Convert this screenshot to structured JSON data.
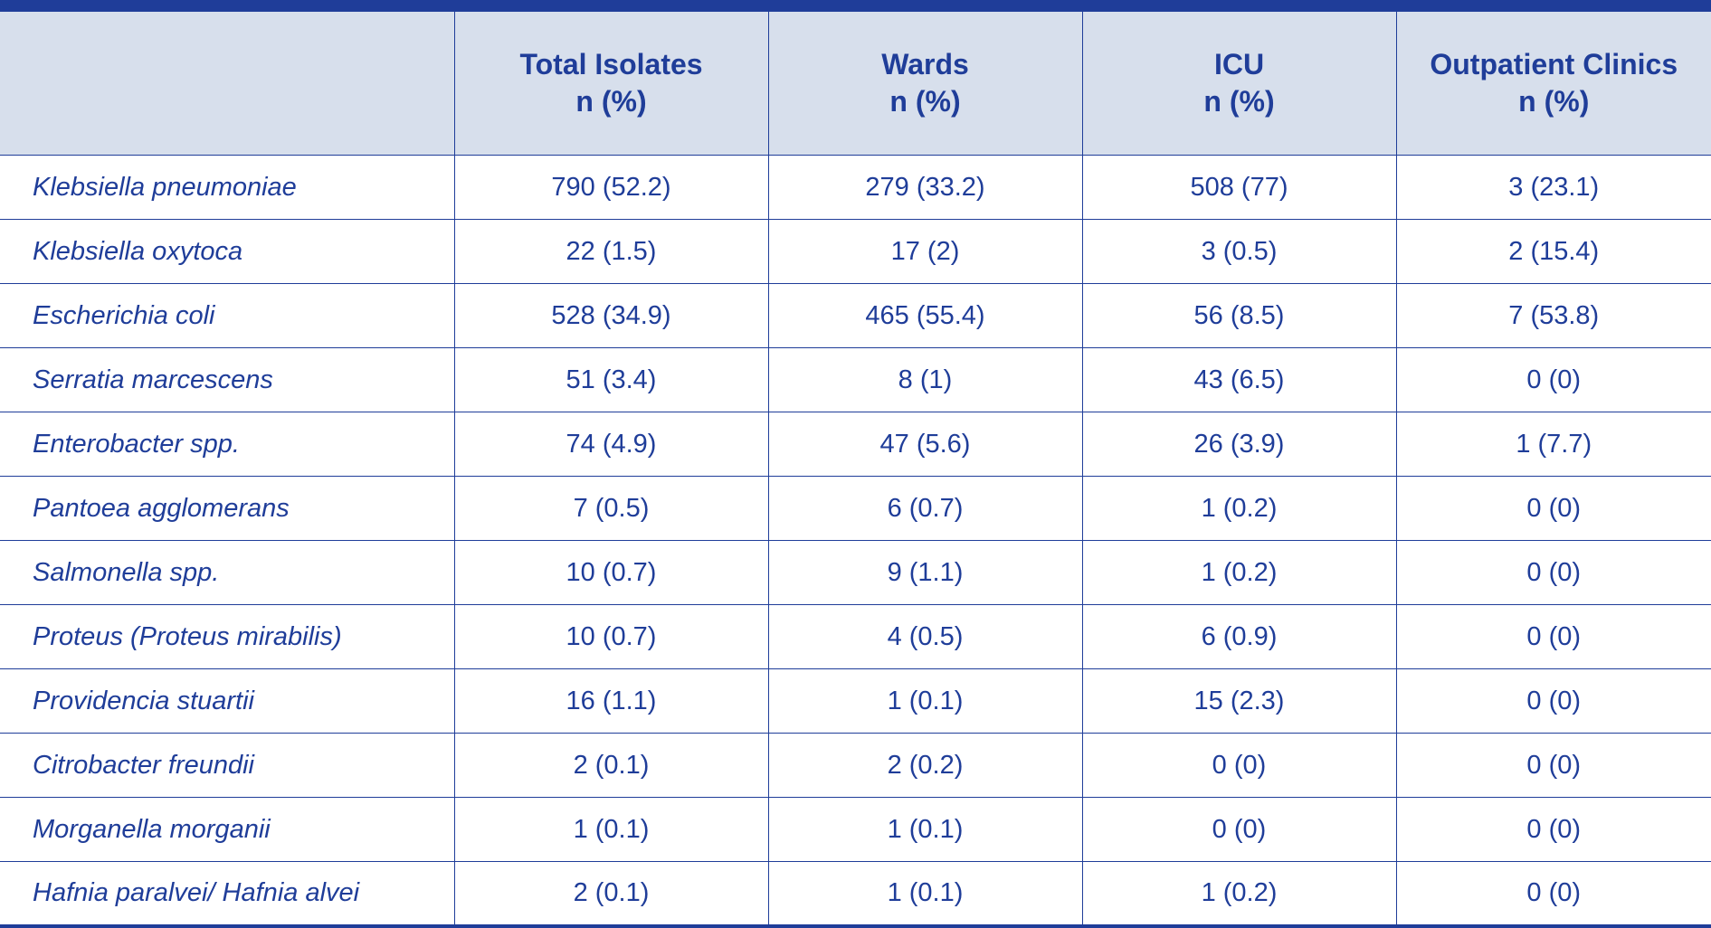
{
  "table": {
    "headers": [
      {
        "line1": "",
        "line2": ""
      },
      {
        "line1": "Total Isolates",
        "line2": "n (%)"
      },
      {
        "line1": "Wards",
        "line2": "n (%)"
      },
      {
        "line1": "ICU",
        "line2": "n (%)"
      },
      {
        "line1": "Outpatient Clinics",
        "line2": "n (%)"
      }
    ],
    "rows": [
      [
        "Klebsiella pneumoniae",
        "790 (52.2)",
        "279 (33.2)",
        "508 (77)",
        "3 (23.1)"
      ],
      [
        "Klebsiella oxytoca",
        "22 (1.5)",
        "17 (2)",
        "3 (0.5)",
        "2 (15.4)"
      ],
      [
        "Escherichia coli",
        "528 (34.9)",
        "465 (55.4)",
        "56 (8.5)",
        "7 (53.8)"
      ],
      [
        "Serratia marcescens",
        "51 (3.4)",
        "8 (1)",
        "43 (6.5)",
        "0 (0)"
      ],
      [
        "Enterobacter spp.",
        "74 (4.9)",
        "47 (5.6)",
        "26 (3.9)",
        "1 (7.7)"
      ],
      [
        "Pantoea agglomerans",
        "7 (0.5)",
        "6 (0.7)",
        "1 (0.2)",
        "0 (0)"
      ],
      [
        "Salmonella spp.",
        "10 (0.7)",
        "9 (1.1)",
        "1 (0.2)",
        "0 (0)"
      ],
      [
        "Proteus (Proteus mirabilis)",
        "10 (0.7)",
        "4 (0.5)",
        "6 (0.9)",
        "0 (0)"
      ],
      [
        "Providencia stuartii",
        "16 (1.1)",
        "1 (0.1)",
        "15 (2.3)",
        "0 (0)"
      ],
      [
        "Citrobacter freundii",
        "2 (0.1)",
        "2 (0.2)",
        "0 (0)",
        "0 (0)"
      ],
      [
        "Morganella morganii",
        "1 (0.1)",
        "1 (0.1)",
        "0 (0)",
        "0 (0)"
      ],
      [
        "Hafnia paralvei/ Hafnia alvei",
        "2 (0.1)",
        "1 (0.1)",
        "1 (0.2)",
        "0 (0)"
      ]
    ]
  },
  "colors": {
    "accent": "#1f3d99",
    "header_bg": "#d7dfec",
    "background": "#ffffff"
  }
}
